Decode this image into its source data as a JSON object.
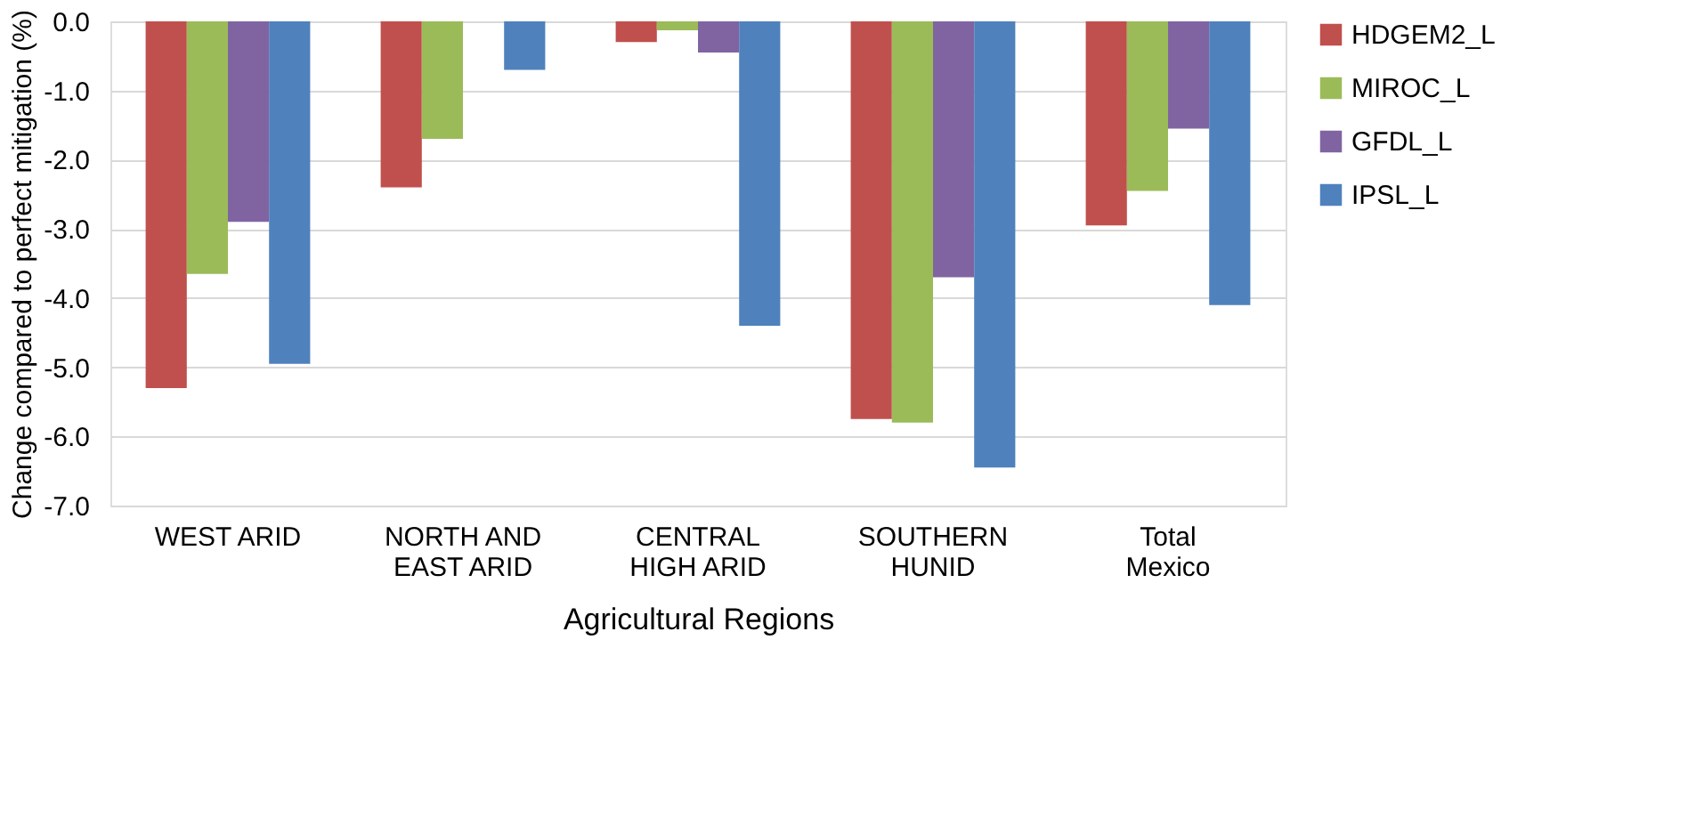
{
  "chart_data": {
    "type": "bar",
    "xlabel": "Agricultural Regions",
    "ylabel": "Change compared to perfect mitigation (%)",
    "categories": [
      "WEST ARID",
      "NORTH AND EAST ARID",
      "CENTRAL HIGH ARID",
      "SOUTHERN HUNID",
      "Total Mexico"
    ],
    "series": [
      {
        "name": "HDGEM2_L",
        "color": "#c0504d",
        "values": [
          -5.3,
          -2.4,
          -0.3,
          -5.75,
          -2.95
        ]
      },
      {
        "name": "MIROC_L",
        "color": "#9bbb59",
        "values": [
          -3.65,
          -1.7,
          -0.13,
          -5.8,
          -2.45
        ]
      },
      {
        "name": "GFDL_L",
        "color": "#8064a2",
        "values": [
          -2.9,
          0,
          -0.45,
          -3.7,
          -1.55
        ]
      },
      {
        "name": "IPSL_L",
        "color": "#4f81bd",
        "values": [
          -4.95,
          -0.7,
          -4.4,
          -6.45,
          -4.1
        ]
      }
    ],
    "ylim": [
      -7,
      0
    ],
    "yticks": [
      {
        "value": 0,
        "label": "0.0"
      },
      {
        "value": -1,
        "label": "-1.0"
      },
      {
        "value": -2,
        "label": "-2.0"
      },
      {
        "value": -3,
        "label": "-3.0"
      },
      {
        "value": -4,
        "label": "-4.0"
      },
      {
        "value": -5,
        "label": "-5.0"
      },
      {
        "value": -6,
        "label": "-6.0"
      },
      {
        "value": -7,
        "label": "-7.0"
      }
    ],
    "grid": "y",
    "legend": "right"
  }
}
